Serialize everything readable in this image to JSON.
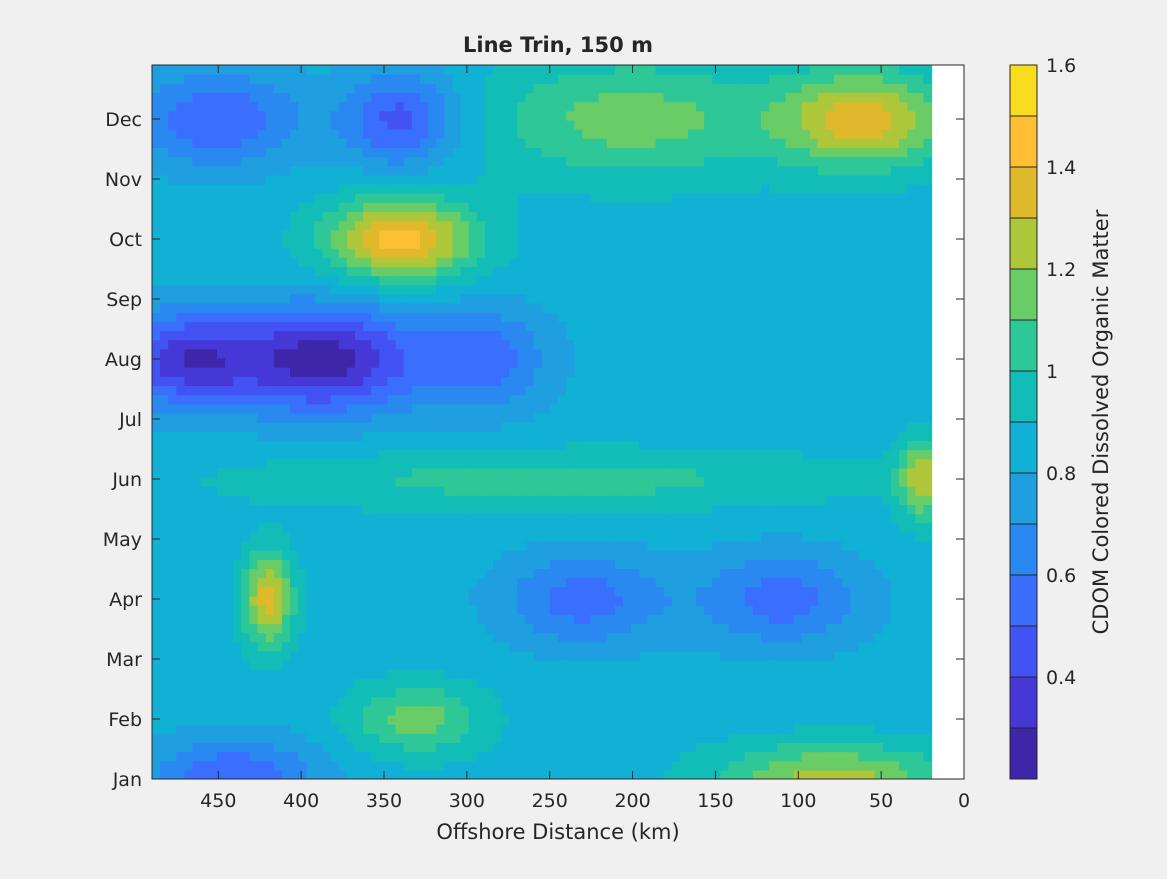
{
  "chart_data": {
    "type": "heatmap",
    "subtype": "filled-contour",
    "title": "Line Trin, 150 m",
    "xlabel": "Offshore Distance (km)",
    "ylabel": "",
    "x_direction": "reversed",
    "xlim": [
      490,
      0
    ],
    "xticks": [
      450,
      400,
      350,
      300,
      250,
      200,
      150,
      100,
      50,
      0
    ],
    "yticks": [
      "Jan",
      "Feb",
      "Mar",
      "Apr",
      "May",
      "Jun",
      "Jul",
      "Aug",
      "Sep",
      "Oct",
      "Nov",
      "Dec"
    ],
    "no_data_x_range": [
      20,
      0
    ],
    "colorbar": {
      "label": "CDOM Colored Dissolved Organic Matter",
      "clim": [
        0.2,
        1.6
      ],
      "ticks": [
        0.4,
        0.6,
        0.8,
        1,
        1.2,
        1.4,
        1.6
      ],
      "tick_labels": [
        "0.4",
        "0.6",
        "0.8",
        "1",
        "1.2",
        "1.4",
        "1.6"
      ],
      "levels": [
        0.2,
        0.3,
        0.4,
        0.5,
        0.6,
        0.7,
        0.8,
        0.9,
        1.0,
        1.1,
        1.2,
        1.3,
        1.4,
        1.5,
        1.6
      ],
      "colors": [
        "#3e26a8",
        "#4538d6",
        "#4352f2",
        "#3a6efd",
        "#2a88f1",
        "#1f9ee0",
        "#11b0d5",
        "#13bdb7",
        "#2ec797",
        "#69cc66",
        "#aec63a",
        "#dfb82c",
        "#fdbf34",
        "#f8dd1e",
        "#f9fb0e"
      ]
    },
    "grid": false,
    "background_value": 0.85,
    "features": [
      {
        "x": 385,
        "y": "Aug",
        "value": 0.25,
        "rx_km": 55,
        "ry_months": 0.9
      },
      {
        "x": 470,
        "y": "Aug",
        "value": 0.35,
        "rx_km": 45,
        "ry_months": 0.8
      },
      {
        "x": 290,
        "y": "Aug",
        "value": 0.55,
        "rx_km": 40,
        "ry_months": 0.9
      },
      {
        "x": 340,
        "y": "Oct",
        "value": 1.45,
        "rx_km": 45,
        "ry_months": 0.7
      },
      {
        "x": 60,
        "y": "Dec",
        "value": 1.35,
        "rx_km": 50,
        "ry_months": 0.8
      },
      {
        "x": 200,
        "y": "Dec",
        "value": 1.15,
        "rx_km": 90,
        "ry_months": 1.0
      },
      {
        "x": 340,
        "y": "Dec",
        "value": 0.45,
        "rx_km": 35,
        "ry_months": 0.8
      },
      {
        "x": 450,
        "y": "Dec",
        "value": 0.5,
        "rx_km": 50,
        "ry_months": 0.8
      },
      {
        "x": 420,
        "y": "Apr",
        "value": 1.35,
        "rx_km": 15,
        "ry_months": 0.8
      },
      {
        "x": 110,
        "y": "Apr",
        "value": 0.55,
        "rx_km": 50,
        "ry_months": 0.8
      },
      {
        "x": 230,
        "y": "Apr",
        "value": 0.55,
        "rx_km": 50,
        "ry_months": 0.8
      },
      {
        "x": 330,
        "y": "Feb",
        "value": 1.15,
        "rx_km": 40,
        "ry_months": 0.6
      },
      {
        "x": 440,
        "y": "Jan",
        "value": 0.5,
        "rx_km": 50,
        "ry_months": 0.7
      },
      {
        "x": 80,
        "y": "Jan",
        "value": 1.25,
        "rx_km": 70,
        "ry_months": 0.6
      },
      {
        "x": 25,
        "y": "Jun",
        "value": 1.25,
        "rx_km": 15,
        "ry_months": 0.7
      },
      {
        "x": 250,
        "y": "Jun",
        "value": 1.05,
        "rx_km": 180,
        "ry_months": 0.5
      }
    ]
  }
}
